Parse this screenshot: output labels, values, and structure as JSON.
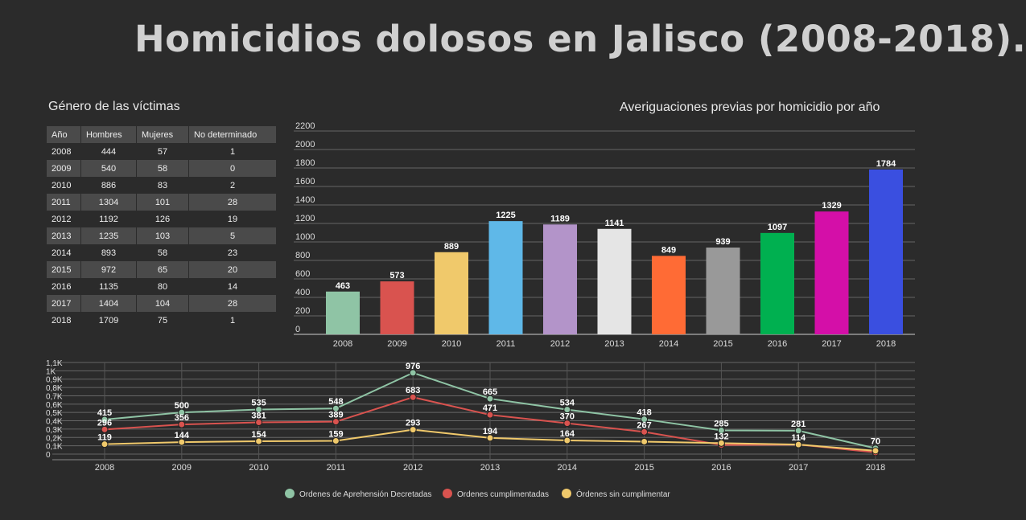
{
  "title": "Homicidios dolosos en Jalisco (2008-2018).",
  "table": {
    "title": "Género de las víctimas",
    "headers": [
      "Año",
      "Hombres",
      "Mujeres",
      "No determinado"
    ],
    "rows": [
      [
        "2008",
        "444",
        "57",
        "1"
      ],
      [
        "2009",
        "540",
        "58",
        "0"
      ],
      [
        "2010",
        "886",
        "83",
        "2"
      ],
      [
        "2011",
        "1304",
        "101",
        "28"
      ],
      [
        "2012",
        "1192",
        "126",
        "19"
      ],
      [
        "2013",
        "1235",
        "103",
        "5"
      ],
      [
        "2014",
        "893",
        "58",
        "23"
      ],
      [
        "2015",
        "972",
        "65",
        "20"
      ],
      [
        "2016",
        "1135",
        "80",
        "14"
      ],
      [
        "2017",
        "1404",
        "104",
        "28"
      ],
      [
        "2018",
        "1709",
        "75",
        "1"
      ]
    ]
  },
  "chart_data": [
    {
      "type": "bar",
      "title": "Averiguaciones previas por homicidio por año",
      "categories": [
        "2008",
        "2009",
        "2010",
        "2011",
        "2012",
        "2013",
        "2014",
        "2015",
        "2016",
        "2017",
        "2018"
      ],
      "values": [
        463,
        573,
        889,
        1225,
        1189,
        1141,
        849,
        939,
        1097,
        1329,
        1784
      ],
      "colors": [
        "#8fc4a5",
        "#d9534f",
        "#f0c96b",
        "#5fb8e8",
        "#b394c9",
        "#e5e5e5",
        "#ff6b35",
        "#999999",
        "#00b050",
        "#d40fa8",
        "#3a4fe0"
      ],
      "ylim": [
        0,
        2200
      ],
      "yticks": [
        "0",
        "200",
        "400",
        "600",
        "800",
        "1000",
        "1200",
        "1400",
        "1600",
        "1800",
        "2000",
        "2200"
      ],
      "grid": true
    },
    {
      "type": "line",
      "categories": [
        "2008",
        "2009",
        "2010",
        "2011",
        "2012",
        "2013",
        "2014",
        "2015",
        "2016",
        "2017",
        "2018"
      ],
      "ylim": [
        0,
        1100
      ],
      "yticks": [
        "0",
        "0,1K",
        "0,2K",
        "0,3K",
        "0,4K",
        "0,5K",
        "0,6K",
        "0,7K",
        "0,8K",
        "0,9K",
        "1K",
        "1,1K"
      ],
      "legend_position": "bottom",
      "series": [
        {
          "name": "Ordenes de Aprehensión Decretadas",
          "color": "#8fc4a5",
          "values": [
            415,
            500,
            535,
            548,
            976,
            665,
            534,
            418,
            285,
            281,
            70
          ],
          "labels": [
            true,
            true,
            true,
            true,
            true,
            true,
            true,
            true,
            true,
            true,
            true
          ]
        },
        {
          "name": "Ordenes cumplimentadas",
          "color": "#d9534f",
          "values": [
            296,
            356,
            381,
            389,
            683,
            471,
            370,
            267,
            110,
            115,
            20
          ],
          "labels": [
            true,
            true,
            true,
            true,
            true,
            true,
            true,
            true,
            false,
            false,
            false
          ]
        },
        {
          "name": "Órdenes sin cumplimentar",
          "color": "#f0c96b",
          "values": [
            119,
            144,
            154,
            159,
            293,
            194,
            164,
            150,
            132,
            114,
            40
          ],
          "labels": [
            true,
            true,
            true,
            true,
            true,
            true,
            true,
            false,
            true,
            true,
            false
          ]
        }
      ]
    }
  ]
}
